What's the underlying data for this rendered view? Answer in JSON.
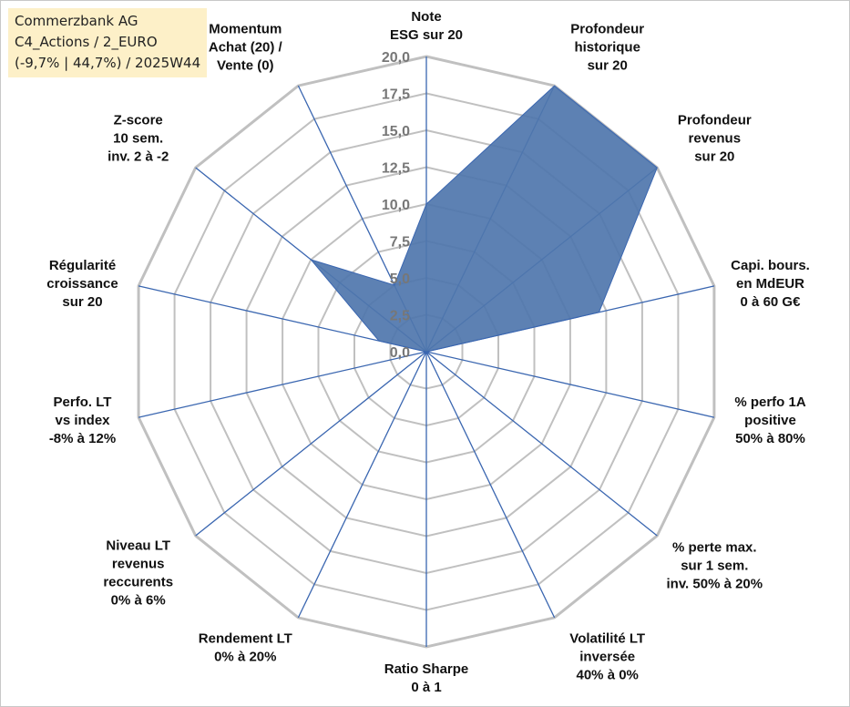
{
  "info_box": {
    "line1": "Commerzbank AG",
    "line2": "C4_Actions / 2_EURO",
    "line3": "(-9,7% | 44,7%) / 2025W44"
  },
  "colors": {
    "grid": "#c0c0c0",
    "spoke": "#3a66b0",
    "fill": "#4f76ad",
    "fill_stroke": "#3a66b0",
    "info_box_bg": "#fdf0c8"
  },
  "chart_data": {
    "type": "radar",
    "title": "",
    "rlim": [
      0,
      20
    ],
    "grid": true,
    "ticks": [
      "0,0",
      "2,5",
      "5,0",
      "7,5",
      "10,0",
      "12,5",
      "15,0",
      "17,5",
      "20,0"
    ],
    "categories": [
      [
        "Note",
        "ESG sur 20"
      ],
      [
        "Profondeur",
        "historique",
        "sur 20"
      ],
      [
        "Profondeur",
        "revenus",
        "sur 20"
      ],
      [
        "Capi. bours.",
        "en MdEUR",
        "0 à 60 G€"
      ],
      [
        "% perfo 1A",
        "positive",
        "50% à 80%"
      ],
      [
        "% perte max.",
        "sur 1 sem.",
        "inv. 50% à 20%"
      ],
      [
        "Volatilité LT",
        "inversée",
        "40% à 0%"
      ],
      [
        "Ratio Sharpe",
        "0 à 1"
      ],
      [
        "Rendement LT",
        "0% à 20%"
      ],
      [
        "Niveau LT",
        "revenus",
        "reccurents",
        "0% à 6%"
      ],
      [
        "Perfo. LT",
        "vs index",
        "-8% à 12%"
      ],
      [
        "Régularité",
        "croissance",
        "sur 20"
      ],
      [
        "Z-score",
        "10 sem.",
        "inv. 2 à -2"
      ],
      [
        "Momentum",
        "Achat (20) /",
        "Vente (0)"
      ]
    ],
    "series": [
      {
        "values": [
          10.0,
          20.0,
          20.0,
          12.0,
          0,
          0,
          0,
          0,
          0,
          0,
          0,
          3.3,
          10.0,
          5.0
        ]
      }
    ]
  }
}
